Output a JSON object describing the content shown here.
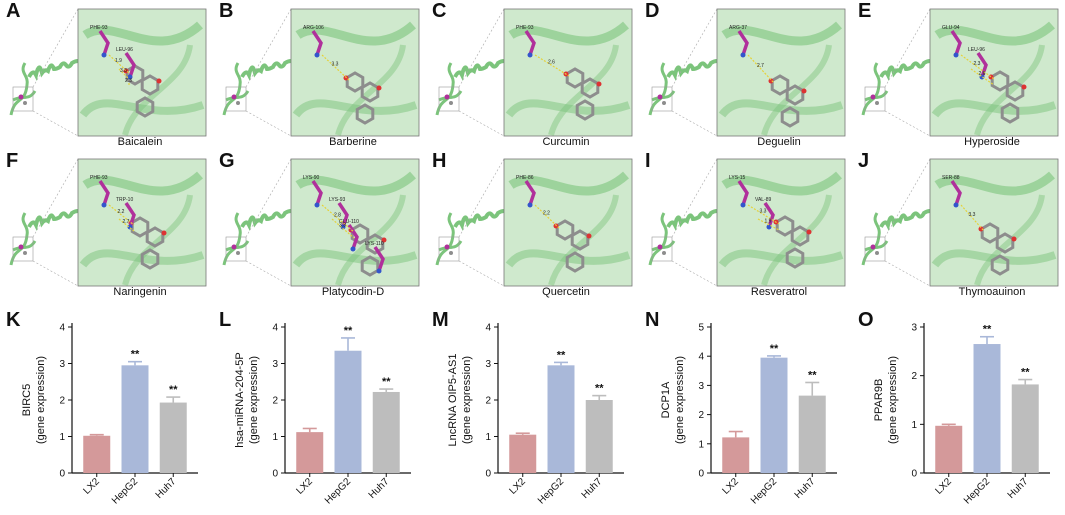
{
  "figure": {
    "panel_letters": [
      "A",
      "B",
      "C",
      "D",
      "E",
      "F",
      "G",
      "H",
      "I",
      "J",
      "K",
      "L",
      "M",
      "N",
      "O"
    ]
  },
  "docking": {
    "panels": [
      {
        "letter": "A",
        "compound": "Baicalein",
        "residues": [
          "PHE-93",
          "LEU-96"
        ],
        "distances": [
          "1.9",
          "3.3",
          "2.3"
        ]
      },
      {
        "letter": "B",
        "compound": "Barberine",
        "residues": [
          "ARG-106"
        ],
        "distances": [
          "3.3"
        ]
      },
      {
        "letter": "C",
        "compound": "Curcumin",
        "residues": [
          "PHE-93"
        ],
        "distances": [
          "2.6"
        ]
      },
      {
        "letter": "D",
        "compound": "Deguelin",
        "residues": [
          "ARG-37"
        ],
        "distances": [
          "2.7"
        ]
      },
      {
        "letter": "E",
        "compound": "Hyperoside",
        "residues": [
          "GLU-94",
          "LEU-96"
        ],
        "distances": [
          "2.3",
          "2.6"
        ]
      },
      {
        "letter": "F",
        "compound": "Naringenin",
        "residues": [
          "PHE-93",
          "TRP-10"
        ],
        "distances": [
          "2.2",
          "2.7"
        ]
      },
      {
        "letter": "G",
        "compound": "Platycodin-D",
        "residues": [
          "LYS-90",
          "LYS-93",
          "GLU-110",
          "LYS-110"
        ],
        "distances": [
          "2.8",
          "3.3"
        ]
      },
      {
        "letter": "H",
        "compound": "Quercetin",
        "residues": [
          "PHE-86"
        ],
        "distances": [
          "2.2"
        ]
      },
      {
        "letter": "I",
        "compound": "Resveratrol",
        "residues": [
          "LYS-15",
          "VAL-89"
        ],
        "distances": [
          "3.3",
          "1.9"
        ]
      },
      {
        "letter": "J",
        "compound": "Thymoauinon",
        "residues": [
          "SER-88"
        ],
        "distances": [
          "3.3"
        ]
      }
    ]
  },
  "chart_data": [
    {
      "type": "bar",
      "panel": "K",
      "ylabel_line1": "BIRC5",
      "ylabel_line2": "(gene expression)",
      "categories": [
        "LX2",
        "HepG2",
        "Huh7"
      ],
      "values": [
        1.02,
        2.95,
        1.93
      ],
      "errors": [
        0.03,
        0.1,
        0.15
      ],
      "ylim": [
        0,
        4
      ],
      "yticks": [
        "0",
        "1",
        "2",
        "3",
        "4"
      ],
      "annotations": [
        "",
        "**",
        "**"
      ]
    },
    {
      "type": "bar",
      "panel": "L",
      "ylabel_line1": "hsa-miRNA-204-5P",
      "ylabel_line2": "(gene expression)",
      "categories": [
        "LX2",
        "HepG2",
        "Huh7"
      ],
      "values": [
        1.12,
        3.35,
        2.22
      ],
      "errors": [
        0.1,
        0.35,
        0.08
      ],
      "ylim": [
        0,
        4
      ],
      "yticks": [
        "0",
        "1",
        "2",
        "3",
        "4"
      ],
      "annotations": [
        "",
        "**",
        "**"
      ]
    },
    {
      "type": "bar",
      "panel": "M",
      "ylabel_line1": "LncRNA OIP5-AS1",
      "ylabel_line2": "(gene expression)",
      "categories": [
        "LX2",
        "HepG2",
        "Huh7"
      ],
      "values": [
        1.05,
        2.95,
        2.0
      ],
      "errors": [
        0.04,
        0.08,
        0.12
      ],
      "ylim": [
        0,
        4
      ],
      "yticks": [
        "0",
        "1",
        "2",
        "3",
        "4"
      ],
      "annotations": [
        "",
        "**",
        "**"
      ]
    },
    {
      "type": "bar",
      "panel": "N",
      "ylabel_line1": "DCP1A",
      "ylabel_line2": "(gene expression)",
      "categories": [
        "LX2",
        "HepG2",
        "Huh7"
      ],
      "values": [
        1.22,
        3.95,
        2.65
      ],
      "errors": [
        0.2,
        0.06,
        0.45
      ],
      "ylim": [
        0,
        5
      ],
      "yticks": [
        "0",
        "1",
        "2",
        "3",
        "4",
        "5"
      ],
      "annotations": [
        "",
        "**",
        "**"
      ]
    },
    {
      "type": "bar",
      "panel": "O",
      "ylabel_line1": "PPAR9B",
      "ylabel_line2": "(gene expression)",
      "categories": [
        "LX2",
        "HepG2",
        "Huh7"
      ],
      "values": [
        0.97,
        2.65,
        1.82
      ],
      "errors": [
        0.03,
        0.15,
        0.1
      ],
      "ylim": [
        0,
        3
      ],
      "yticks": [
        "0",
        "1",
        "2",
        "3"
      ],
      "annotations": [
        "",
        "**",
        "**"
      ]
    }
  ],
  "colors": {
    "lx2": "#d4999a",
    "hepg2": "#a9b8d9",
    "huh7": "#bdbdbd",
    "ribbon": "#7cc47c",
    "ribbon_bg": "#cfe9cd",
    "ligand": "#8d8d8d",
    "residue": "#b0309b",
    "hbond": "#e6d23a"
  }
}
